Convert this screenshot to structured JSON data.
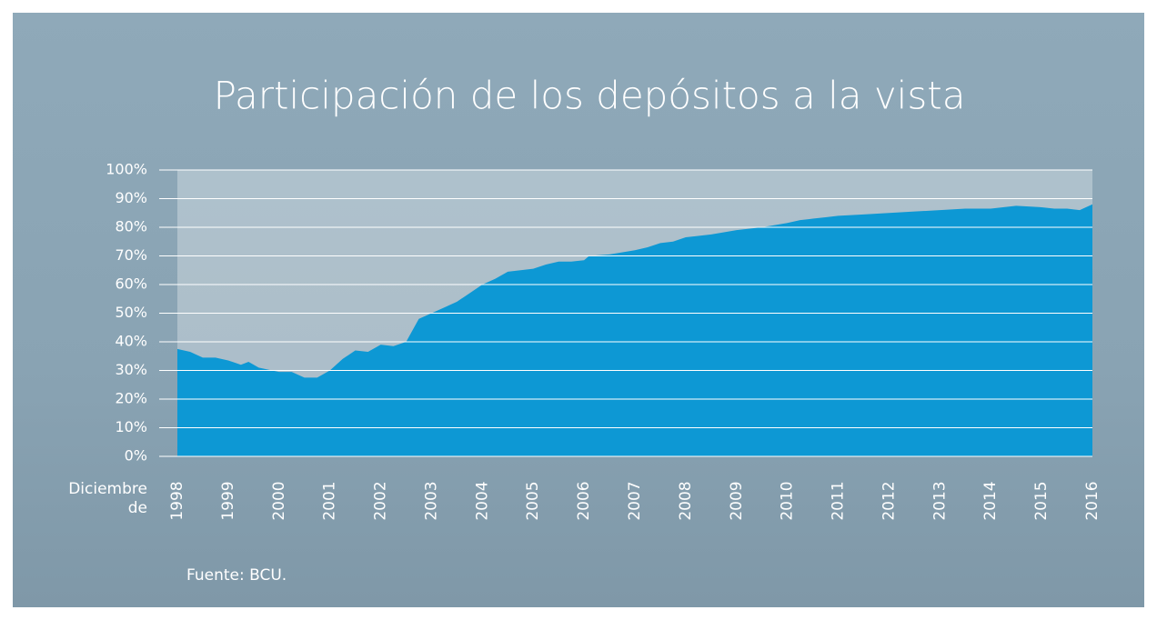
{
  "chart_data": {
    "type": "area",
    "title": "Participación de los depósitos a la vista",
    "x_label": "Diciembre de",
    "source": "Fuente: BCU.",
    "color": "#0d98d4",
    "grid": true,
    "x": [
      1998.0,
      1998.25,
      1998.5,
      1998.75,
      1999.0,
      1999.25,
      1999.4,
      1999.6,
      2000.0,
      2000.25,
      2000.5,
      2000.75,
      2001.0,
      2001.25,
      2001.5,
      2001.75,
      2002.0,
      2002.25,
      2002.5,
      2002.75,
      2003.0,
      2003.25,
      2003.5,
      2003.75,
      2004.0,
      2004.25,
      2004.5,
      2004.75,
      2005.0,
      2005.25,
      2005.5,
      2005.75,
      2006.0,
      2006.1,
      2006.5,
      2007.0,
      2007.25,
      2007.5,
      2007.75,
      2008.0,
      2008.5,
      2009.0,
      2009.5,
      2010.0,
      2010.25,
      2010.5,
      2010.75,
      2011.0,
      2011.5,
      2012.0,
      2012.5,
      2013.0,
      2013.5,
      2014.0,
      2014.5,
      2015.0,
      2015.25,
      2015.5,
      2015.75,
      2016.0
    ],
    "values": [
      37.5,
      36.5,
      34.5,
      34.5,
      33.5,
      32,
      33,
      31,
      29.5,
      29.5,
      27.5,
      27.5,
      30,
      34,
      37,
      36.5,
      39,
      38.5,
      40,
      48,
      50,
      52,
      54,
      57,
      60,
      62,
      64.5,
      65,
      65.5,
      67,
      68,
      68,
      68.5,
      70,
      70.5,
      72,
      73,
      74.5,
      75,
      76.5,
      77.5,
      79,
      80,
      81.5,
      82.5,
      83,
      83.5,
      84,
      84.5,
      85,
      85.5,
      86,
      86.5,
      86.5,
      87.5,
      87,
      86.5,
      86.5,
      86,
      88
    ],
    "xlim": [
      1998,
      2016
    ],
    "xticks": [
      1998,
      1999,
      2000,
      2001,
      2002,
      2003,
      2004,
      2005,
      2006,
      2007,
      2008,
      2009,
      2010,
      2011,
      2012,
      2013,
      2014,
      2015,
      2016
    ],
    "ylim": [
      0,
      100
    ],
    "yticks": [
      {
        "value": 0,
        "label": "0%"
      },
      {
        "value": 10,
        "label": "10%"
      },
      {
        "value": 20,
        "label": "20%"
      },
      {
        "value": 30,
        "label": "30%"
      },
      {
        "value": 40,
        "label": "40%"
      },
      {
        "value": 50,
        "label": "50%"
      },
      {
        "value": 60,
        "label": "60%"
      },
      {
        "value": 70,
        "label": "70%"
      },
      {
        "value": 80,
        "label": "80%"
      },
      {
        "value": 90,
        "label": "90%"
      },
      {
        "value": 100,
        "label": "100%"
      }
    ]
  }
}
